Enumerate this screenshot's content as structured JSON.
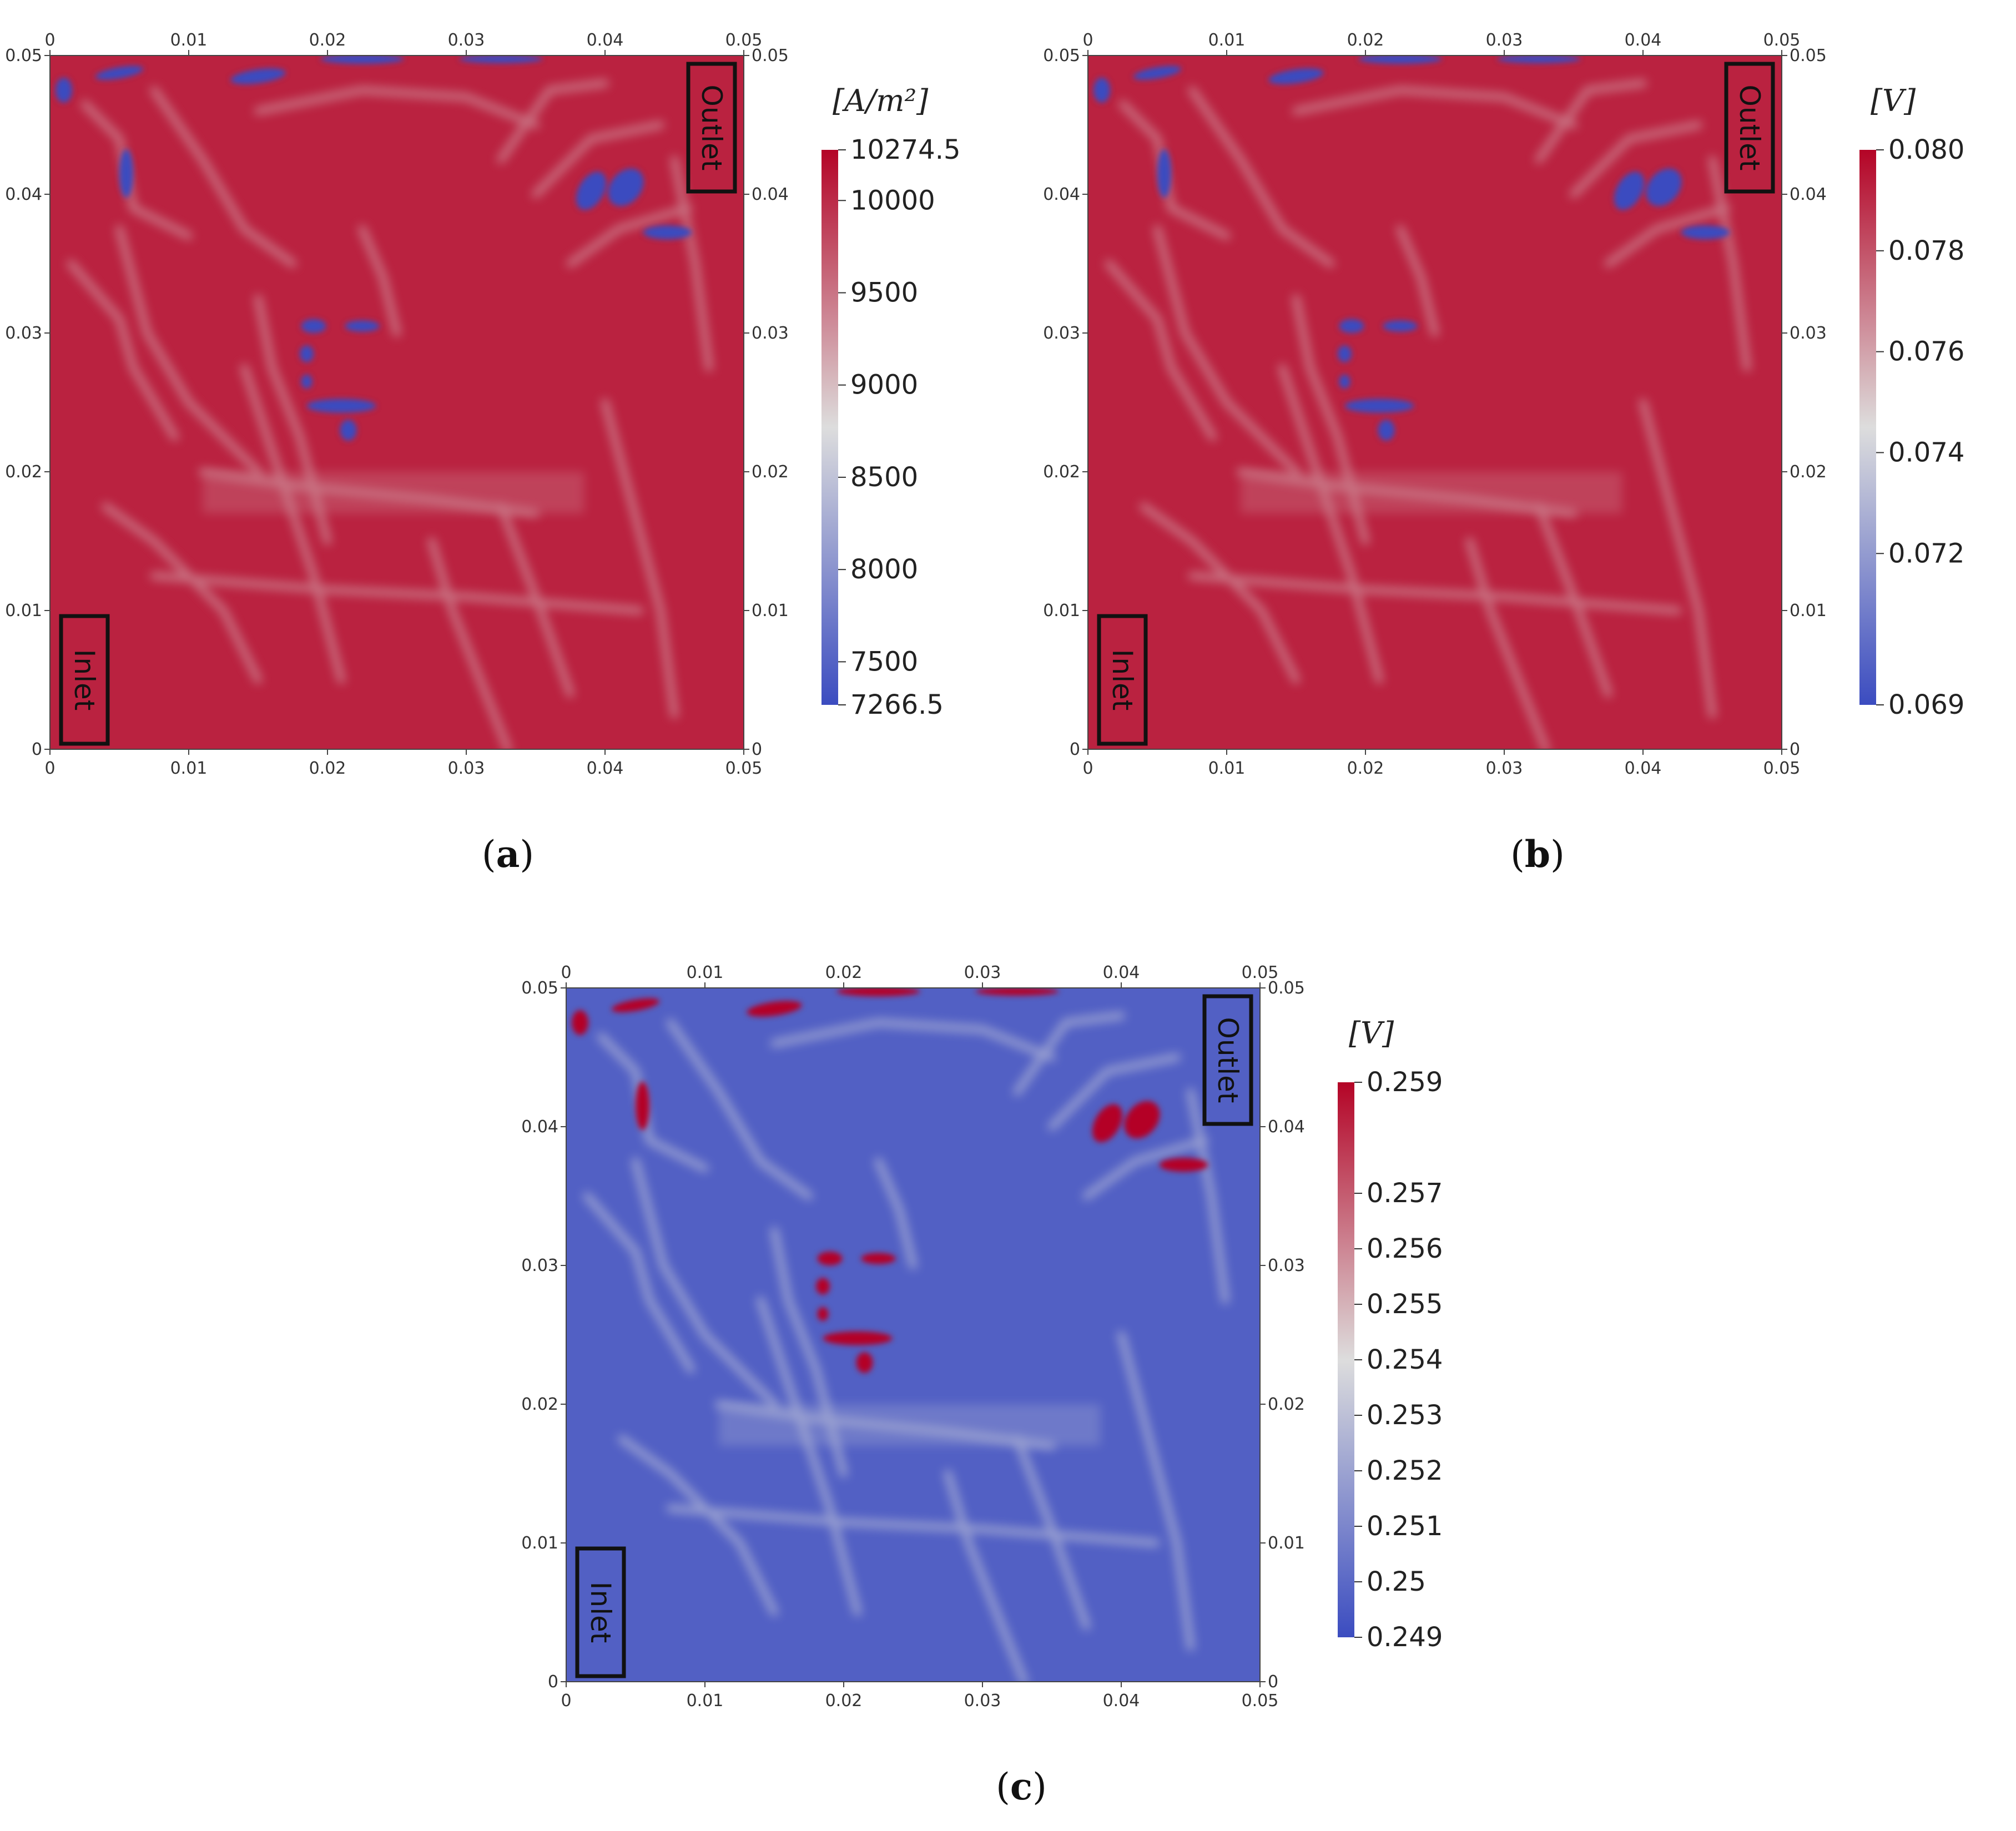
{
  "chart_data": [
    {
      "type": "heatmap",
      "panel": "a",
      "caption": "a",
      "unit": "[A/m²]",
      "x_ticks": [
        "0",
        "0.01",
        "0.02",
        "0.03",
        "0.04",
        "0.05"
      ],
      "y_ticks": [
        "0",
        "0.01",
        "0.02",
        "0.03",
        "0.04",
        "0.05"
      ],
      "xlim": [
        0,
        0.05
      ],
      "ylim": [
        0,
        0.05
      ],
      "colorbar": {
        "min": 7266.5,
        "max": 10274.5,
        "ticks": [
          "10274.5",
          "10000",
          "9500",
          "9000",
          "8500",
          "8000",
          "7500",
          "7266.5"
        ],
        "colormap": "cool-to-warm",
        "low_color": "#3b4cc0",
        "mid_color": "#dddddd",
        "high_color": "#b40426"
      },
      "base_level": 0.93,
      "annotations": [
        "Inlet",
        "Outlet"
      ]
    },
    {
      "type": "heatmap",
      "panel": "b",
      "caption": "b",
      "unit": "[V]",
      "x_ticks": [
        "0",
        "0.01",
        "0.02",
        "0.03",
        "0.04",
        "0.05"
      ],
      "y_ticks": [
        "0",
        "0.01",
        "0.02",
        "0.03",
        "0.04",
        "0.05"
      ],
      "xlim": [
        0,
        0.05
      ],
      "ylim": [
        0,
        0.05
      ],
      "colorbar": {
        "min": 0.069,
        "max": 0.08,
        "ticks": [
          "0.080",
          "0.078",
          "0.076",
          "0.074",
          "0.072",
          "0.069"
        ],
        "colormap": "cool-to-warm",
        "low_color": "#3b4cc0",
        "mid_color": "#dddddd",
        "high_color": "#b40426"
      },
      "base_level": 0.93,
      "annotations": [
        "Inlet",
        "Outlet"
      ]
    },
    {
      "type": "heatmap",
      "panel": "c",
      "caption": "c",
      "unit": "[V]",
      "x_ticks": [
        "0",
        "0.01",
        "0.02",
        "0.03",
        "0.04",
        "0.05"
      ],
      "y_ticks": [
        "0",
        "0.01",
        "0.02",
        "0.03",
        "0.04",
        "0.05"
      ],
      "xlim": [
        0,
        0.05
      ],
      "ylim": [
        0,
        0.05
      ],
      "colorbar": {
        "min": 0.249,
        "max": 0.259,
        "ticks": [
          "0.259",
          "0.257",
          "0.256",
          "0.255",
          "0.254",
          "0.253",
          "0.252",
          "0.251",
          "0.25",
          "0.249"
        ],
        "colormap": "cool-to-warm",
        "low_color": "#3b4cc0",
        "mid_color": "#dddddd",
        "high_color": "#b40426"
      },
      "base_level": 0.07,
      "annotations": [
        "Inlet",
        "Outlet"
      ]
    }
  ]
}
